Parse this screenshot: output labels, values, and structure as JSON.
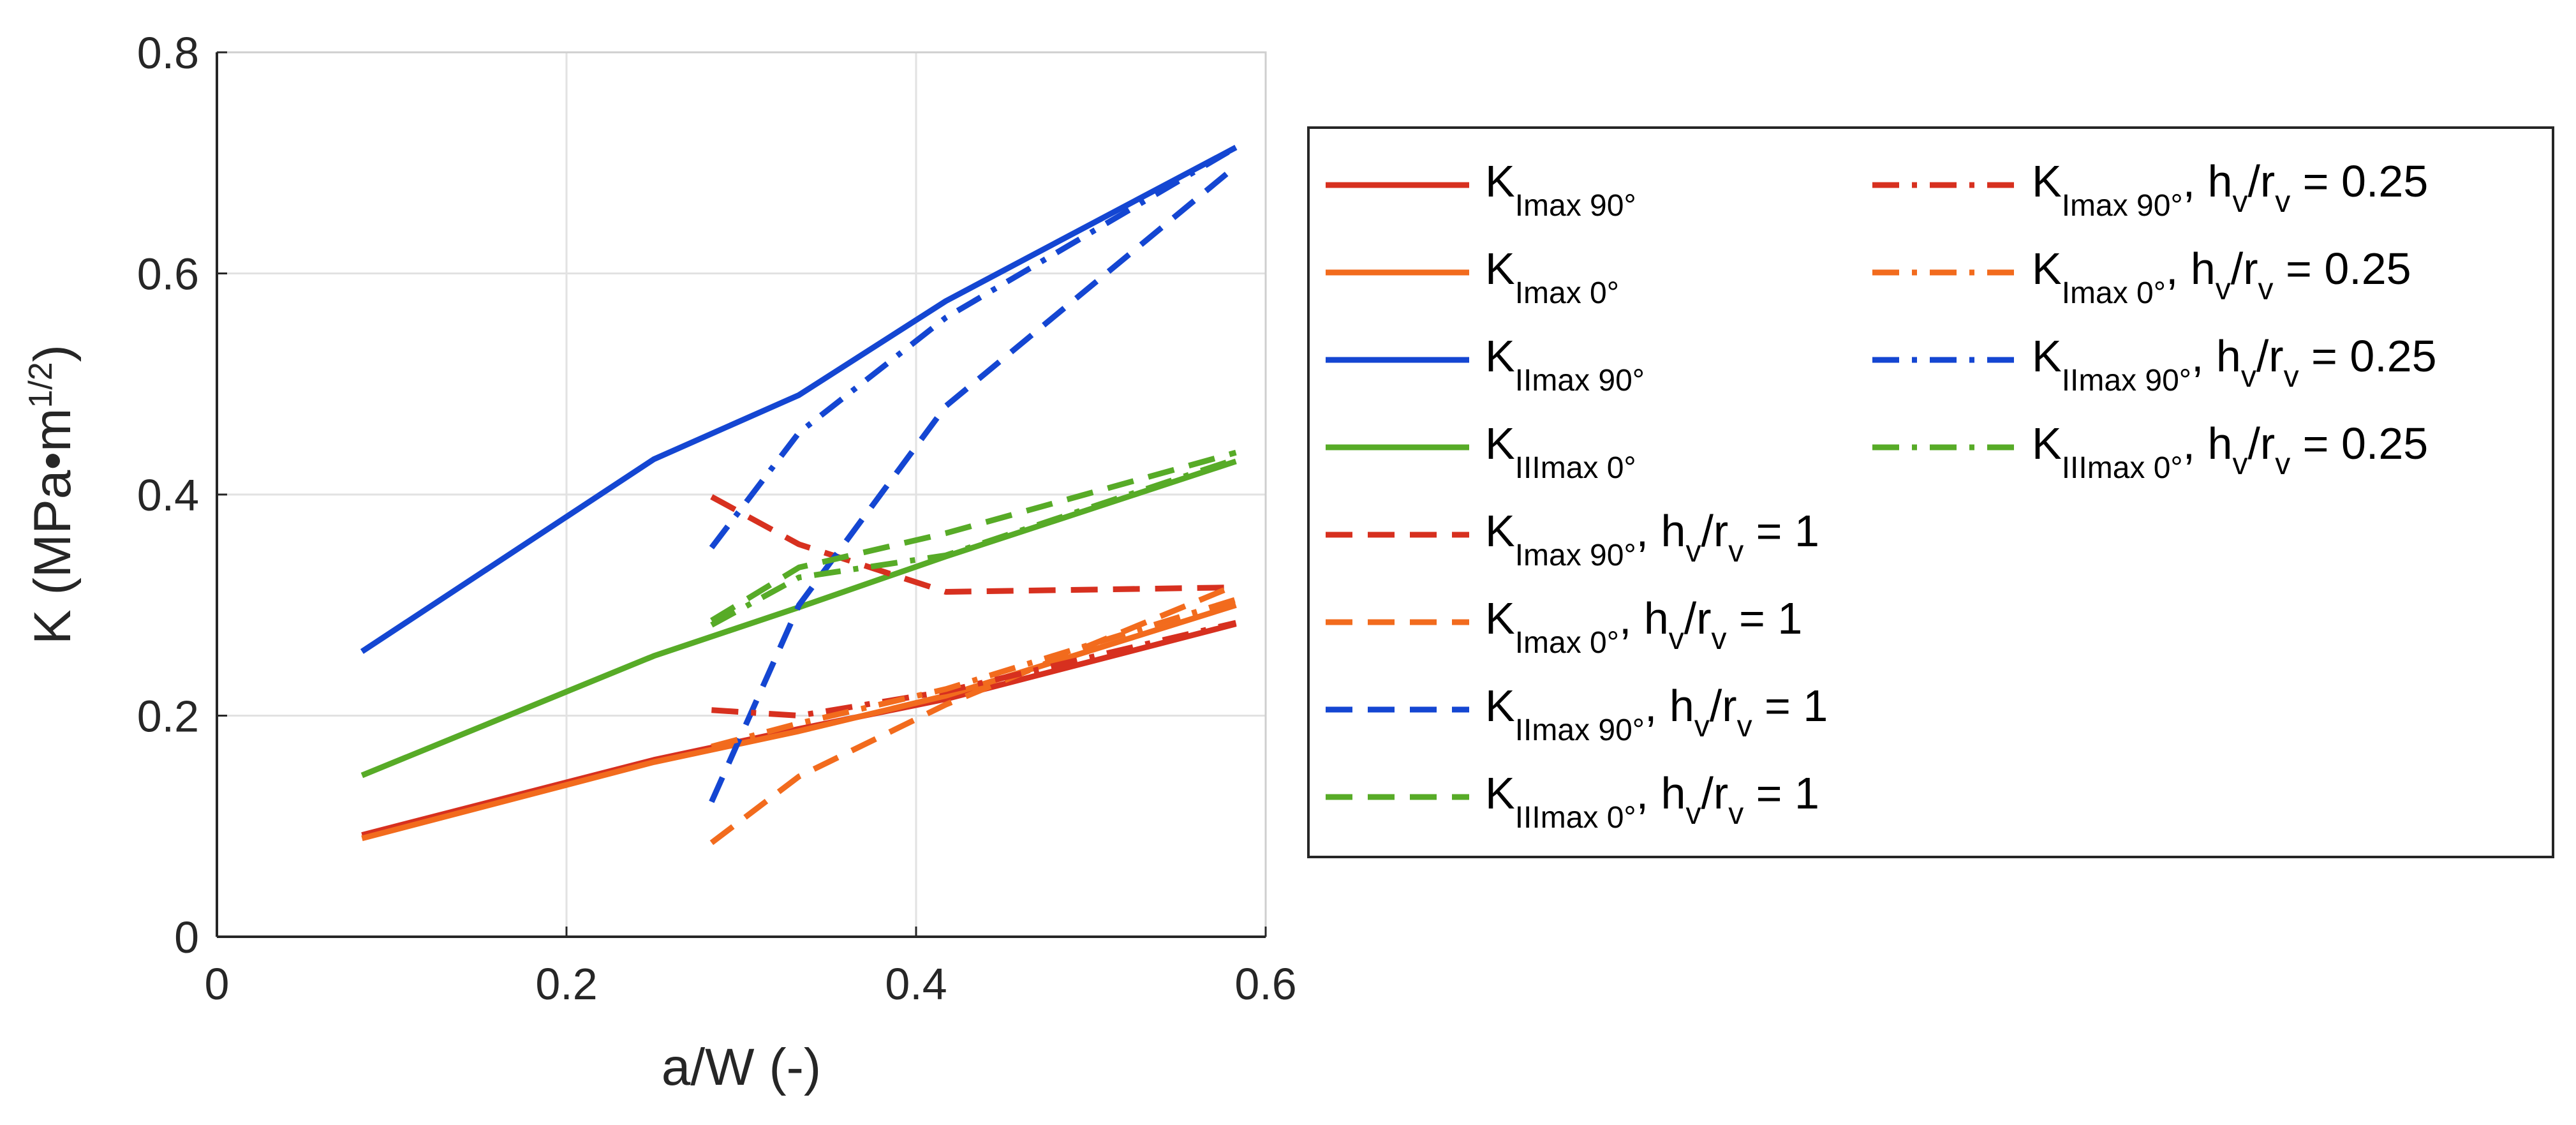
{
  "chart_data": {
    "type": "line",
    "xlabel": "a/W (-)",
    "ylabel": "K (MPa•m",
    "ylabel_exponent": "1/2",
    "ylabel_close": ")",
    "xlim": [
      0,
      0.6
    ],
    "ylim": [
      0,
      0.8
    ],
    "xticks": [
      "0",
      "0.2",
      "0.4",
      "0.6"
    ],
    "yticks": [
      "0",
      "0.2",
      "0.4",
      "0.6",
      "0.8"
    ],
    "xtick_values": [
      0,
      0.2,
      0.4,
      0.6
    ],
    "ytick_values": [
      0,
      0.2,
      0.4,
      0.6,
      0.8
    ],
    "grid": true,
    "legend_position": "outside-right",
    "series": [
      {
        "name": "KImax 90°",
        "K": "K",
        "sub": "Imax 90°",
        "suffix": "",
        "color": "#d7301f",
        "dash": "solid",
        "x": [
          0.083,
          0.25,
          0.333,
          0.417,
          0.583
        ],
        "y": [
          0.092,
          0.16,
          0.188,
          0.215,
          0.283
        ]
      },
      {
        "name": "KImax 0°",
        "K": "K",
        "sub": "Imax 0°",
        "suffix": "",
        "color": "#f26b1d",
        "dash": "solid",
        "x": [
          0.083,
          0.25,
          0.333,
          0.417,
          0.583
        ],
        "y": [
          0.089,
          0.158,
          0.186,
          0.218,
          0.3
        ]
      },
      {
        "name": "KIImax 90°",
        "K": "K",
        "sub": "IImax 90°",
        "suffix": "",
        "color": "#1446d2",
        "dash": "solid",
        "x": [
          0.083,
          0.25,
          0.333,
          0.417,
          0.583
        ],
        "y": [
          0.258,
          0.432,
          0.49,
          0.575,
          0.714
        ]
      },
      {
        "name": "KIIImax 0°",
        "K": "K",
        "sub": "IIImax 0°",
        "suffix": "",
        "color": "#57ab27",
        "dash": "solid",
        "x": [
          0.083,
          0.25,
          0.333,
          0.417,
          0.583
        ],
        "y": [
          0.146,
          0.254,
          0.298,
          0.344,
          0.43
        ]
      },
      {
        "name": "KImax 90°, hv/rv = 1",
        "K": "K",
        "sub": "Imax 90°",
        "suffix": "hv/rv = 1",
        "color": "#d7301f",
        "dash": "dashed",
        "x": [
          0.283,
          0.333,
          0.417,
          0.583
        ],
        "y": [
          0.398,
          0.355,
          0.312,
          0.316
        ]
      },
      {
        "name": "KImax 0°, hv/rv = 1",
        "K": "K",
        "sub": "Imax 0°",
        "suffix": "hv/rv = 1",
        "color": "#f26b1d",
        "dash": "dashed",
        "x": [
          0.283,
          0.333,
          0.417,
          0.583
        ],
        "y": [
          0.085,
          0.145,
          0.21,
          0.318
        ]
      },
      {
        "name": "KIImax 90°, hv/rv = 1",
        "K": "K",
        "sub": "IImax 90°",
        "suffix": "hv/rv = 1",
        "color": "#1446d2",
        "dash": "dashed",
        "x": [
          0.283,
          0.333,
          0.417,
          0.583
        ],
        "y": [
          0.122,
          0.3,
          0.48,
          0.697
        ]
      },
      {
        "name": "KIIImax 0°, hv/rv = 1",
        "K": "K",
        "sub": "IIImax 0°",
        "suffix": "hv/rv = 1",
        "color": "#57ab27",
        "dash": "dashed",
        "x": [
          0.283,
          0.333,
          0.417,
          0.583
        ],
        "y": [
          0.286,
          0.334,
          0.365,
          0.438
        ]
      },
      {
        "name": "KImax 90°, hv/rv = 0.25",
        "K": "K",
        "sub": "Imax 90°",
        "suffix": "hv/rv = 0.25",
        "color": "#d7301f",
        "dash": "dashdot",
        "x": [
          0.283,
          0.333,
          0.417,
          0.583
        ],
        "y": [
          0.205,
          0.2,
          0.222,
          0.284
        ]
      },
      {
        "name": "KImax 0°, hv/rv = 0.25",
        "K": "K",
        "sub": "Imax 0°",
        "suffix": "hv/rv = 0.25",
        "color": "#f26b1d",
        "dash": "dashdot",
        "x": [
          0.283,
          0.333,
          0.417,
          0.583
        ],
        "y": [
          0.172,
          0.193,
          0.224,
          0.305
        ]
      },
      {
        "name": "KIImax 90°, hv/rv = 0.25",
        "K": "K",
        "sub": "IImax 90°",
        "suffix": "hv/rv = 0.25",
        "color": "#1446d2",
        "dash": "dashdot",
        "x": [
          0.283,
          0.333,
          0.417,
          0.583
        ],
        "y": [
          0.352,
          0.456,
          0.56,
          0.714
        ]
      },
      {
        "name": "KIIImax 0°, hv/rv = 0.25",
        "K": "K",
        "sub": "IIImax 0°",
        "suffix": "hv/rv = 0.25",
        "color": "#57ab27",
        "dash": "dashdot",
        "x": [
          0.283,
          0.333,
          0.417,
          0.583
        ],
        "y": [
          0.282,
          0.325,
          0.345,
          0.432
        ]
      }
    ]
  }
}
